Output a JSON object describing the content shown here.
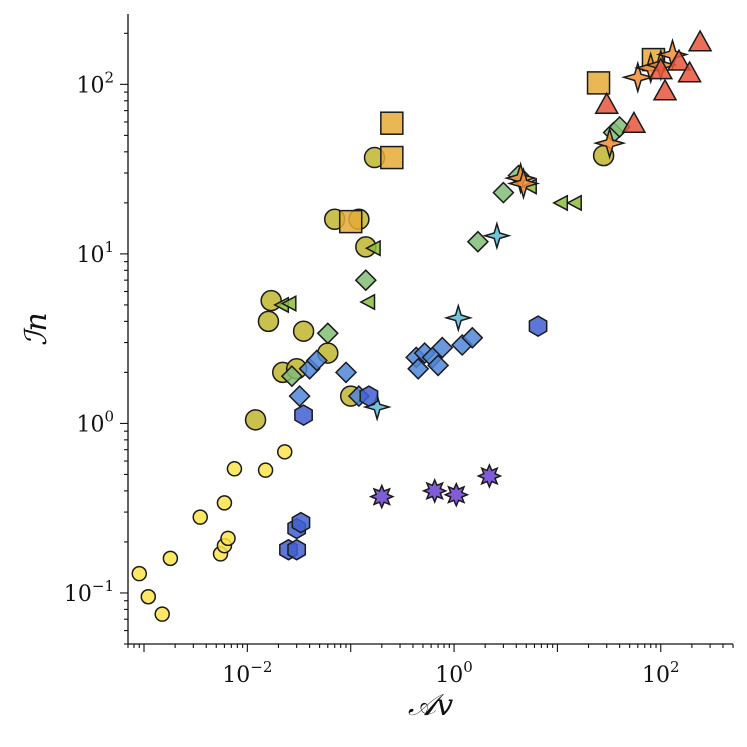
{
  "chart_data": {
    "type": "scatter",
    "xlabel": "𝒜v",
    "ylabel": "ℐn",
    "xscale": "log",
    "yscale": "log",
    "xlim": [
      0.0007,
      500
    ],
    "ylim": [
      0.05,
      260
    ],
    "grid": false,
    "legend": "none",
    "xticks": [
      {
        "value": 0.01,
        "base": "10",
        "exp": "−2"
      },
      {
        "value": 1,
        "base": "10",
        "exp": "0"
      },
      {
        "value": 100,
        "base": "10",
        "exp": "2"
      }
    ],
    "yticks": [
      {
        "value": 0.1,
        "base": "10",
        "exp": "−1"
      },
      {
        "value": 1,
        "base": "10",
        "exp": "0"
      },
      {
        "value": 10,
        "base": "10",
        "exp": "1"
      },
      {
        "value": 100,
        "base": "10",
        "exp": "2"
      }
    ],
    "series": [
      {
        "marker": "circle",
        "color": "#fbe44a",
        "size": 7,
        "points": [
          [
            0.0009,
            0.13
          ],
          [
            0.0011,
            0.095
          ],
          [
            0.0015,
            0.075
          ],
          [
            0.0018,
            0.16
          ],
          [
            0.0035,
            0.28
          ],
          [
            0.0055,
            0.17
          ],
          [
            0.006,
            0.19
          ],
          [
            0.0065,
            0.21
          ],
          [
            0.006,
            0.34
          ],
          [
            0.0075,
            0.54
          ],
          [
            0.015,
            0.53
          ],
          [
            0.023,
            0.68
          ]
        ]
      },
      {
        "marker": "circle",
        "color": "#bfb52e",
        "size": 10,
        "points": [
          [
            0.012,
            1.05
          ],
          [
            0.016,
            4.0
          ],
          [
            0.017,
            5.3
          ],
          [
            0.022,
            2.0
          ],
          [
            0.03,
            2.1
          ],
          [
            0.035,
            3.5
          ],
          [
            0.06,
            2.6
          ],
          [
            0.07,
            16
          ],
          [
            0.1,
            1.45
          ],
          [
            0.12,
            16
          ],
          [
            0.14,
            11
          ],
          [
            0.17,
            37
          ],
          [
            28,
            38
          ]
        ]
      },
      {
        "marker": "triangle-left",
        "color": "#8cbd3c",
        "size": 8,
        "points": [
          [
            0.022,
            5.0
          ],
          [
            0.026,
            5.1
          ],
          [
            0.17,
            10.8
          ],
          [
            0.15,
            5.2
          ],
          [
            11,
            20
          ],
          [
            15,
            20
          ],
          [
            5.5,
            25
          ]
        ]
      },
      {
        "marker": "diamond",
        "color": "#82bd77",
        "size": 10,
        "points": [
          [
            0.027,
            1.9
          ],
          [
            0.06,
            3.4
          ],
          [
            0.14,
            7.0
          ],
          [
            1.7,
            11.8
          ],
          [
            3.0,
            23
          ],
          [
            4.2,
            29
          ],
          [
            35,
            52
          ],
          [
            40,
            56
          ]
        ]
      },
      {
        "marker": "diamond",
        "color": "#4f86d8",
        "size": 10,
        "points": [
          [
            0.032,
            1.45
          ],
          [
            0.04,
            2.1
          ],
          [
            0.047,
            2.35
          ],
          [
            0.09,
            2.0
          ],
          [
            0.12,
            1.45
          ],
          [
            0.43,
            2.45
          ],
          [
            0.45,
            2.1
          ],
          [
            0.52,
            2.6
          ],
          [
            0.62,
            2.45
          ],
          [
            0.7,
            2.2
          ],
          [
            0.77,
            2.8
          ],
          [
            1.2,
            2.9
          ],
          [
            1.5,
            3.2
          ]
        ]
      },
      {
        "marker": "star4",
        "color": "#5cb8d6",
        "size": 12,
        "points": [
          [
            0.18,
            1.25
          ],
          [
            1.1,
            4.2
          ],
          [
            2.6,
            12.8
          ]
        ]
      },
      {
        "marker": "hexagon",
        "color": "#3f5fd0",
        "size": 10,
        "points": [
          [
            0.025,
            0.18
          ],
          [
            0.03,
            0.18
          ],
          [
            0.03,
            0.24
          ],
          [
            0.033,
            0.26
          ],
          [
            0.035,
            1.12
          ],
          [
            0.15,
            1.45
          ],
          [
            6.5,
            3.75
          ]
        ]
      },
      {
        "marker": "star8",
        "color": "#6a3fd0",
        "size": 11,
        "points": [
          [
            0.2,
            0.37
          ],
          [
            0.65,
            0.4
          ],
          [
            1.05,
            0.38
          ],
          [
            2.2,
            0.49
          ]
        ]
      },
      {
        "marker": "square",
        "color": "#e5aa35",
        "size": 11,
        "points": [
          [
            0.1,
            15.5
          ],
          [
            0.25,
            37
          ],
          [
            0.25,
            59
          ],
          [
            25,
            102
          ],
          [
            85,
            140
          ]
        ]
      },
      {
        "marker": "star4",
        "color": "#f28d34",
        "size": 14,
        "points": [
          [
            4.4,
            28
          ],
          [
            4.7,
            26
          ],
          [
            60,
            110
          ],
          [
            80,
            125
          ],
          [
            100,
            130
          ],
          [
            130,
            150
          ],
          [
            32,
            45
          ]
        ]
      },
      {
        "marker": "triangle-up",
        "color": "#e8553c",
        "size": 11,
        "points": [
          [
            30,
            75
          ],
          [
            55,
            58
          ],
          [
            100,
            120
          ],
          [
            110,
            90
          ],
          [
            150,
            135
          ],
          [
            190,
            115
          ],
          [
            240,
            175
          ]
        ]
      }
    ]
  }
}
